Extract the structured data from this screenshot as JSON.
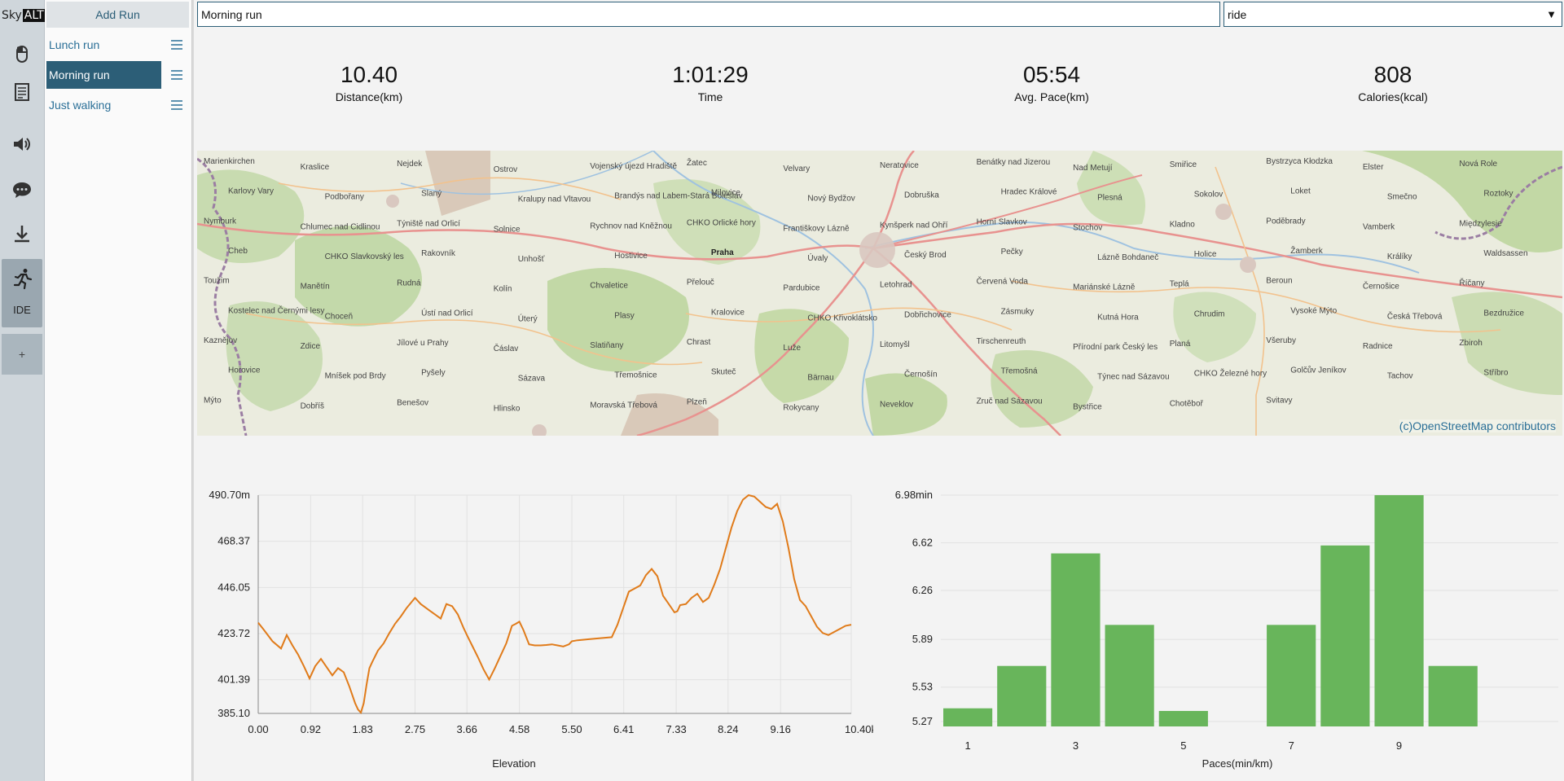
{
  "app": {
    "logo_left": "Sky",
    "logo_right": "ALT"
  },
  "rail": {
    "items": [
      {
        "icon": "mouse-icon"
      },
      {
        "icon": "document-icon"
      },
      {
        "icon": "speaker-icon"
      },
      {
        "icon": "chat-icon"
      },
      {
        "icon": "download-icon"
      }
    ],
    "active_label": "IDE",
    "active_icon": "runner-icon",
    "add_label": "+"
  },
  "runs": {
    "add_label": "Add Run",
    "items": [
      {
        "label": "Lunch run",
        "selected": false
      },
      {
        "label": "Morning run",
        "selected": true
      },
      {
        "label": "Just walking",
        "selected": false
      }
    ]
  },
  "run": {
    "title": "Morning run",
    "type": "ride"
  },
  "stats": [
    {
      "value": "10.40",
      "label": "Distance(km)"
    },
    {
      "value": "1:01:29",
      "label": "Time"
    },
    {
      "value": "05:54",
      "label": "Avg. Pace(km)"
    },
    {
      "value": "808",
      "label": "Calories(kcal)"
    }
  ],
  "map": {
    "attribution": "(c)OpenStreetMap contributors",
    "places": [
      "Marienkirchen",
      "Kraslice",
      "Nejdek",
      "Ostrov",
      "Vojenský újezd Hradiště",
      "Žatec",
      "Velvary",
      "Neratovice",
      "Benátky nad Jizerou",
      "Nad Metují",
      "Smiřice",
      "Bystrzyca Kłodzka",
      "Elster",
      "Nová Role",
      "Karlovy Vary",
      "Podbořany",
      "Slaný",
      "Kralupy nad Vltavou",
      "Brandýs nad Labem-Stará Boleslav",
      "Milovice",
      "Nový Bydžov",
      "Dobruška",
      "Hradec Králové",
      "Plesná",
      "Sokolov",
      "Loket",
      "Smečno",
      "Roztoky",
      "Nymburk",
      "Chlumec nad Cidlinou",
      "Týniště nad Orlicí",
      "Solnice",
      "Rychnov nad Kněžnou",
      "CHKO Orlické hory",
      "Františkovy Lázně",
      "Kynšperk nad Ohří",
      "Horní Slavkov",
      "Stochov",
      "Kladno",
      "Poděbrady",
      "Vamberk",
      "Międzylesie",
      "Cheb",
      "CHKO Slavkovský les",
      "Rakovník",
      "Unhošť",
      "Hostivice",
      "Praha",
      "Úvaly",
      "Český Brod",
      "Pečky",
      "Lázně Bohdaneč",
      "Holice",
      "Žamberk",
      "Králíky",
      "Waldsassen",
      "Toužim",
      "Manětín",
      "Rudná",
      "Kolín",
      "Chvaletice",
      "Přelouč",
      "Pardubice",
      "Letohrad",
      "Červená Voda",
      "Mariánské Lázně",
      "Teplá",
      "Beroun",
      "Černošice",
      "Říčany",
      "Kostelec nad Černými lesy",
      "Choceň",
      "Ústí nad Orlicí",
      "Úterý",
      "Plasy",
      "Kralovice",
      "CHKO Křivoklátsko",
      "Dobřichovice",
      "Zásmuky",
      "Kutná Hora",
      "Chrudim",
      "Vysoké Mýto",
      "Česká Třebová",
      "Bezdružice",
      "Kaznějov",
      "Zdice",
      "Jílové u Prahy",
      "Čáslav",
      "Slatiňany",
      "Chrast",
      "Luže",
      "Litomyšl",
      "Tirschenreuth",
      "Přírodní park Český les",
      "Planá",
      "Všeruby",
      "Radnice",
      "Zbiroh",
      "Hořovice",
      "Mníšek pod Brdy",
      "Pyšely",
      "Sázava",
      "Třemošnice",
      "Skuteč",
      "Bärnau",
      "Černošín",
      "Třemošná",
      "Týnec nad Sázavou",
      "CHKO Železné hory",
      "Golčův Jeníkov",
      "Tachov",
      "Stříbro",
      "Mýto",
      "Dobříš",
      "Benešov",
      "Hlinsko",
      "Moravská Třebová",
      "Plzeň",
      "Rokycany",
      "Neveklov",
      "Zruč nad Sázavou",
      "Bystřice",
      "Chotěboř",
      "Svitavy"
    ]
  },
  "charts": [
    {
      "type": "line",
      "xlabel": "Elevation",
      "x_unit": "km",
      "y_unit": "m",
      "ylim": [
        385.1,
        490.7
      ],
      "xlim": [
        0.0,
        10.4
      ],
      "y_ticks": [
        "490.70m",
        "468.37",
        "446.05",
        "423.72",
        "401.39",
        "385.10"
      ],
      "y_tick_values": [
        490.7,
        468.37,
        446.05,
        423.72,
        401.39,
        385.1
      ],
      "x_ticks": [
        "0.00",
        "0.92",
        "1.83",
        "2.75",
        "3.66",
        "4.58",
        "5.50",
        "6.41",
        "7.33",
        "8.24",
        "9.16",
        "10.40km"
      ],
      "x_tick_values": [
        0.0,
        0.92,
        1.83,
        2.75,
        3.66,
        4.58,
        5.5,
        6.41,
        7.33,
        8.24,
        9.16,
        10.4
      ],
      "color": "#e07b1a",
      "x": [
        0.0,
        0.1,
        0.25,
        0.4,
        0.5,
        0.6,
        0.7,
        0.8,
        0.9,
        1.0,
        1.1,
        1.2,
        1.3,
        1.4,
        1.5,
        1.6,
        1.7,
        1.75,
        1.8,
        1.85,
        1.9,
        1.95,
        2.0,
        2.1,
        2.2,
        2.3,
        2.4,
        2.5,
        2.6,
        2.75,
        2.85,
        3.0,
        3.1,
        3.2,
        3.3,
        3.4,
        3.5,
        3.6,
        3.66,
        3.75,
        3.85,
        3.95,
        4.05,
        4.15,
        4.25,
        4.35,
        4.45,
        4.52,
        4.58,
        4.65,
        4.75,
        4.85,
        4.95,
        5.05,
        5.15,
        5.25,
        5.35,
        5.45,
        5.5,
        5.6,
        5.8,
        6.0,
        6.2,
        6.3,
        6.4,
        6.5,
        6.7,
        6.8,
        6.9,
        7.0,
        7.1,
        7.2,
        7.3,
        7.35,
        7.4,
        7.5,
        7.6,
        7.7,
        7.8,
        7.9,
        8.0,
        8.1,
        8.2,
        8.3,
        8.4,
        8.5,
        8.6,
        8.7,
        8.8,
        8.9,
        9.0,
        9.1,
        9.2,
        9.3,
        9.4,
        9.5,
        9.55,
        9.6,
        9.7,
        9.8,
        9.9,
        10.0,
        10.1,
        10.2,
        10.3,
        10.4
      ],
      "y": [
        429.0,
        425.5,
        420.0,
        416.5,
        423.0,
        418.0,
        413.5,
        408.0,
        402.0,
        408.0,
        411.5,
        407.5,
        403.5,
        407.0,
        405.0,
        398.0,
        390.0,
        387.0,
        385.5,
        390.0,
        399.0,
        407.0,
        410.0,
        415.5,
        419.0,
        424.0,
        428.5,
        432.0,
        436.0,
        441.0,
        438.0,
        435.0,
        433.0,
        431.0,
        438.0,
        437.0,
        433.0,
        426.5,
        423.0,
        418.0,
        412.5,
        406.5,
        401.5,
        407.0,
        413.0,
        419.0,
        427.5,
        428.5,
        429.5,
        425.5,
        418.5,
        418.0,
        418.0,
        418.2,
        418.5,
        418.0,
        417.5,
        418.5,
        420.0,
        420.5,
        421.0,
        421.5,
        422.0,
        428.0,
        436.0,
        444.0,
        447.0,
        452.0,
        455.0,
        451.5,
        442.0,
        438.0,
        434.0,
        434.5,
        437.5,
        438.0,
        441.0,
        443.0,
        439.0,
        441.0,
        447.5,
        455.0,
        465.0,
        475.0,
        483.0,
        488.5,
        490.7,
        490.0,
        487.5,
        485.0,
        484.0,
        486.5,
        478.0,
        465.0,
        450.0,
        440.0,
        438.5,
        437.0,
        432.0,
        427.0,
        424.0,
        423.0,
        424.5,
        426.0,
        427.5,
        428.0
      ]
    },
    {
      "type": "bar",
      "xlabel": "Paces(min/km)",
      "y_unit": "min",
      "ylim": [
        5.27,
        6.98
      ],
      "y_ticks": [
        "6.98min",
        "6.62",
        "6.26",
        "5.89",
        "5.53",
        "5.27"
      ],
      "y_tick_values": [
        6.98,
        6.62,
        6.26,
        5.89,
        5.53,
        5.27
      ],
      "x_ticks": [
        "1",
        "3",
        "5",
        "7",
        "9"
      ],
      "x_tick_values": [
        1,
        3,
        5,
        7,
        9
      ],
      "color": "#68b55b",
      "categories": [
        1,
        2,
        3,
        4,
        5,
        6,
        7,
        8,
        9,
        10,
        11
      ],
      "values": [
        5.37,
        5.69,
        6.54,
        6.0,
        5.35,
        null,
        6.0,
        6.6,
        6.98,
        5.69,
        null
      ]
    }
  ]
}
